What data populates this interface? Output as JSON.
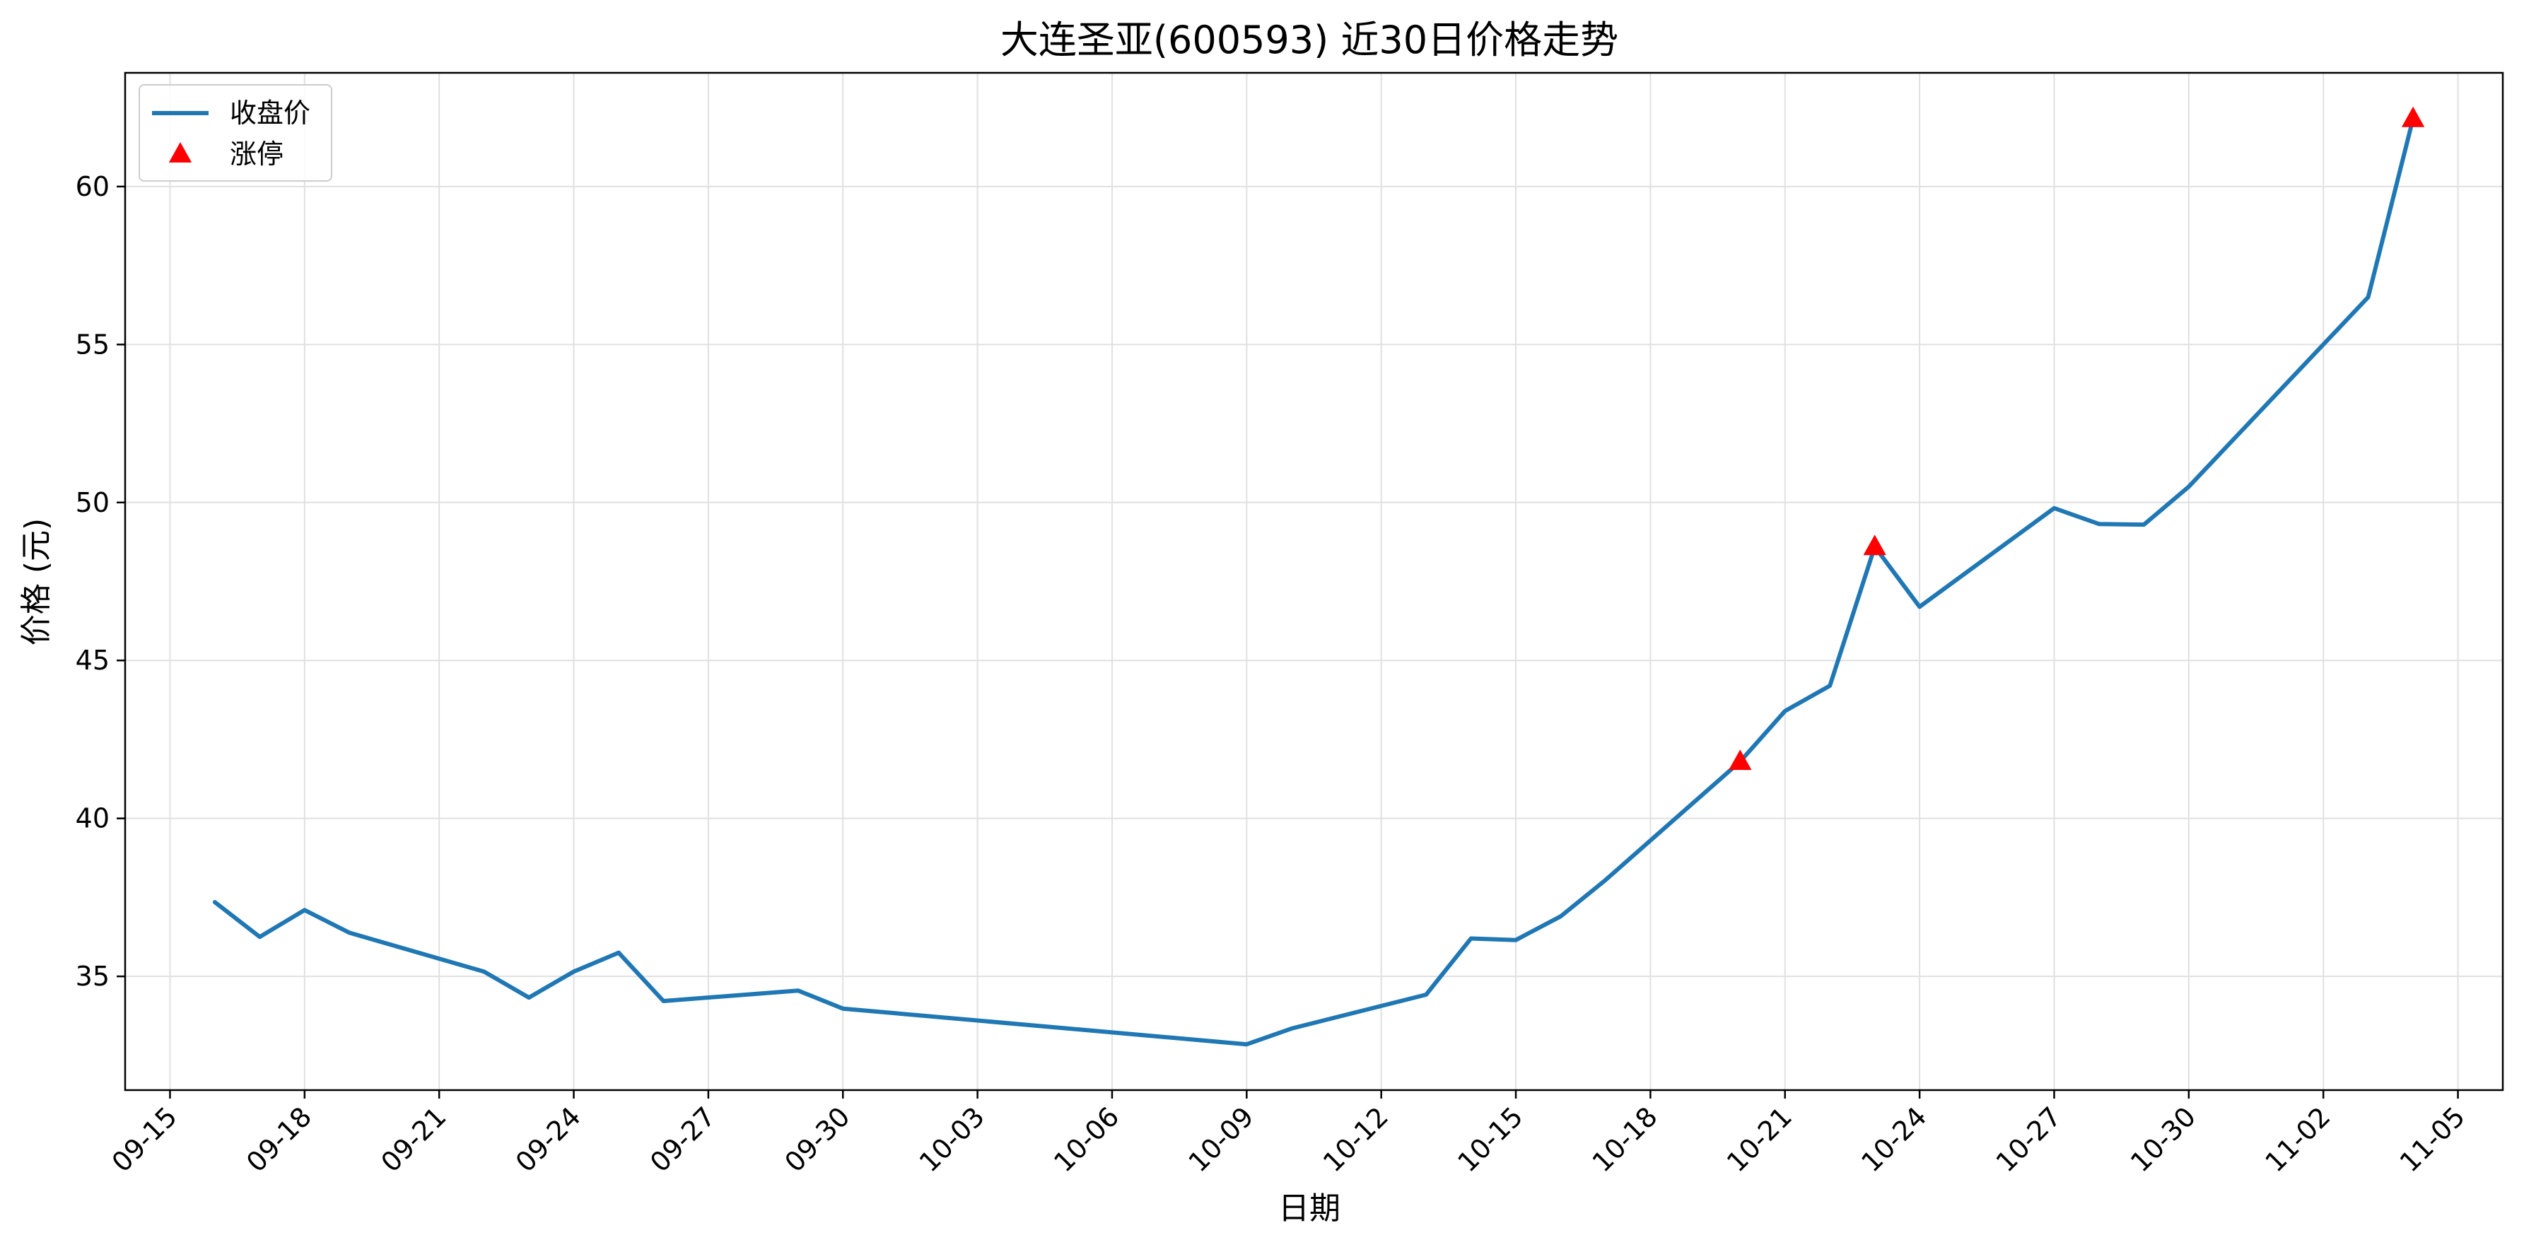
{
  "chart_data": {
    "type": "line",
    "title": "大连圣亚(600593) 近30日价格走势",
    "xlabel": "日期",
    "ylabel": "价格 (元)",
    "x_axis_type": "date",
    "xlim": [
      "2025-09-14",
      "2025-11-06"
    ],
    "ylim": [
      31.4,
      63.6
    ],
    "x_ticks": [
      "09-15",
      "09-18",
      "09-21",
      "09-24",
      "09-27",
      "09-30",
      "10-03",
      "10-06",
      "10-09",
      "10-12",
      "10-15",
      "10-18",
      "10-21",
      "10-24",
      "10-27",
      "10-30",
      "11-02",
      "11-05"
    ],
    "y_ticks": [
      35,
      40,
      45,
      50,
      55,
      60
    ],
    "grid": true,
    "legend_position": "top-left",
    "series": [
      {
        "name": "收盘价",
        "kind": "line",
        "color": "#1f77b4",
        "points": [
          {
            "x": "2025-09-16",
            "y": 37.35
          },
          {
            "x": "2025-09-17",
            "y": 36.25
          },
          {
            "x": "2025-09-18",
            "y": 37.1
          },
          {
            "x": "2025-09-19",
            "y": 36.38
          },
          {
            "x": "2025-09-22",
            "y": 35.15
          },
          {
            "x": "2025-09-23",
            "y": 34.33
          },
          {
            "x": "2025-09-24",
            "y": 35.15
          },
          {
            "x": "2025-09-25",
            "y": 35.75
          },
          {
            "x": "2025-09-26",
            "y": 34.22
          },
          {
            "x": "2025-09-29",
            "y": 34.55
          },
          {
            "x": "2025-09-30",
            "y": 33.98
          },
          {
            "x": "2025-10-09",
            "y": 32.85
          },
          {
            "x": "2025-10-10",
            "y": 33.35
          },
          {
            "x": "2025-10-13",
            "y": 34.42
          },
          {
            "x": "2025-10-14",
            "y": 36.2
          },
          {
            "x": "2025-10-15",
            "y": 36.15
          },
          {
            "x": "2025-10-16",
            "y": 36.9
          },
          {
            "x": "2025-10-17",
            "y": 38.05
          },
          {
            "x": "2025-10-20",
            "y": 41.8
          },
          {
            "x": "2025-10-21",
            "y": 43.4
          },
          {
            "x": "2025-10-22",
            "y": 44.2
          },
          {
            "x": "2025-10-23",
            "y": 48.6
          },
          {
            "x": "2025-10-24",
            "y": 46.7
          },
          {
            "x": "2025-10-27",
            "y": 49.82
          },
          {
            "x": "2025-10-28",
            "y": 49.32
          },
          {
            "x": "2025-10-29",
            "y": 49.3
          },
          {
            "x": "2025-10-30",
            "y": 50.5
          },
          {
            "x": "2025-11-03",
            "y": 56.5
          },
          {
            "x": "2025-11-04",
            "y": 62.15
          }
        ]
      },
      {
        "name": "涨停",
        "kind": "scatter",
        "marker": "triangle",
        "color": "#ff0000",
        "points": [
          {
            "x": "2025-10-20",
            "y": 41.8
          },
          {
            "x": "2025-10-23",
            "y": 48.6
          },
          {
            "x": "2025-11-04",
            "y": 62.15
          }
        ]
      }
    ]
  }
}
